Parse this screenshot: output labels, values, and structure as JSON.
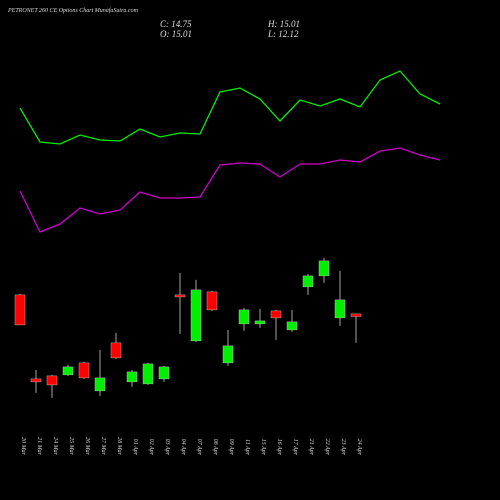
{
  "chart_data": {
    "type": "candlestick",
    "title": "PETRONET 260 CE Options Chart MunafaSutra.com",
    "ohlc_text": {
      "close": "C: 14.75",
      "open": "O: 15.01",
      "high": "H: 15.01",
      "low": "L: 12.12"
    },
    "categories": [
      "20 Mar",
      "21 Mar",
      "24 Mar",
      "25 Mar",
      "26 Mar",
      "27 Mar",
      "28 Mar",
      "01 Apr",
      "02 Apr",
      "03 Apr",
      "04 Apr",
      "07 Apr",
      "08 Apr",
      "09 Apr",
      "11 Apr",
      "15 Apr",
      "16 Apr",
      "17 Apr",
      "21 Apr",
      "22 Apr",
      "23 Apr",
      "24 Apr"
    ],
    "open": [
      16.91,
      8.51,
      8.81,
      8.91,
      10.11,
      7.31,
      12.11,
      8.21,
      8.01,
      8.51,
      16.91,
      12.31,
      17.21,
      10.11,
      14.01,
      14.01,
      15.31,
      13.41,
      17.71,
      18.81,
      14.61,
      15.01
    ],
    "high": [
      17.01,
      9.41,
      8.91,
      9.91,
      10.21,
      11.41,
      13.11,
      9.41,
      10.11,
      9.81,
      19.11,
      18.41,
      17.31,
      13.41,
      15.61,
      15.51,
      15.41,
      15.41,
      19.01,
      20.61,
      19.31,
      15.01
    ],
    "low": [
      13.91,
      7.11,
      6.61,
      8.81,
      8.51,
      6.81,
      10.51,
      7.71,
      7.91,
      8.21,
      13.01,
      12.21,
      15.31,
      9.81,
      13.31,
      13.61,
      12.41,
      13.21,
      16.91,
      18.11,
      13.81,
      12.12
    ],
    "close": [
      13.91,
      8.21,
      7.91,
      9.71,
      8.61,
      8.61,
      10.61,
      9.21,
      10.01,
      9.71,
      16.71,
      17.41,
      15.41,
      11.81,
      15.41,
      14.31,
      14.61,
      14.21,
      18.81,
      20.31,
      16.41,
      14.75
    ],
    "up_color": "#00ee00",
    "down_color": "#ff0000",
    "ylim": [
      6,
      21
    ],
    "series": [
      {
        "color": "#00ee00",
        "axis": "y2",
        "values": [
          71,
          54,
          53,
          57.5,
          55,
          54.5,
          60.5,
          56.5,
          58.5,
          58,
          79,
          81,
          75.5,
          64.5,
          75,
          72,
          75.5,
          71.5,
          85,
          89.5,
          78,
          73
        ]
      },
      {
        "color": "#cc00cc",
        "axis": "y2",
        "values": [
          29.5,
          9,
          13,
          21,
          18,
          20,
          29,
          26,
          26,
          26.5,
          42.5,
          43.5,
          43,
          36.5,
          43,
          43,
          45,
          44,
          49.5,
          51,
          47.5,
          45
        ]
      }
    ],
    "y2lim": [
      0,
      100
    ]
  }
}
